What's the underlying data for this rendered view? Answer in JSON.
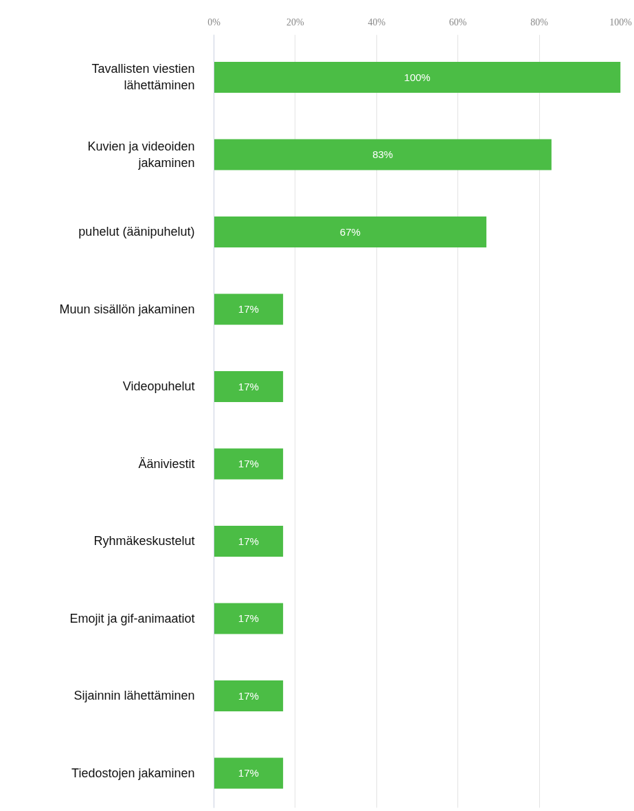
{
  "chart_data": {
    "type": "bar",
    "orientation": "horizontal",
    "categories": [
      "Tavallisten viestien lähettäminen",
      "Kuvien ja videoiden jakaminen",
      "puhelut (äänipuhelut)",
      "Muun sisällön jakaminen",
      "Videopuhelut",
      "Ääniviestit",
      "Ryhmäkeskustelut",
      "Emojit ja gif-animaatiot",
      "Sijainnin lähettäminen",
      "Tiedostojen jakaminen"
    ],
    "values": [
      100,
      83,
      67,
      17,
      17,
      17,
      17,
      17,
      17,
      17
    ],
    "value_labels": [
      "100%",
      "83%",
      "67%",
      "17%",
      "17%",
      "17%",
      "17%",
      "17%",
      "17%",
      "17%"
    ],
    "color": "#4bbd45",
    "xlim": [
      0,
      100
    ],
    "xticks": [
      {
        "value": 0,
        "label": "0%"
      },
      {
        "value": 20,
        "label": "20%"
      },
      {
        "value": 40,
        "label": "40%"
      },
      {
        "value": 60,
        "label": "60%"
      },
      {
        "value": 80,
        "label": "80%"
      },
      {
        "value": 100,
        "label": "100%"
      }
    ],
    "grid": "x"
  }
}
